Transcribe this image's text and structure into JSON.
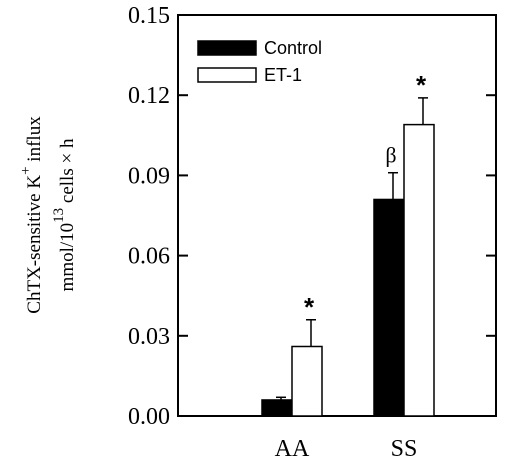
{
  "chart_data": {
    "type": "bar",
    "categories": [
      "AA",
      "SS"
    ],
    "series": [
      {
        "name": "Control",
        "color": "#000000",
        "values": [
          0.006,
          0.081
        ],
        "errors": [
          0.001,
          0.01
        ]
      },
      {
        "name": "ET-1",
        "color": "#ffffff",
        "values": [
          0.026,
          0.109
        ],
        "errors": [
          0.01,
          0.01
        ]
      }
    ],
    "yticks": [
      "0.00",
      "0.03",
      "0.06",
      "0.09",
      "0.12",
      "0.15"
    ],
    "ylim": [
      0,
      0.15
    ],
    "ylabel": {
      "line1_main": "ChTX-sensitive K",
      "line1_sup": "+",
      "line1_end": " influx",
      "line2_main": "mmol/10",
      "line2_sup": "13",
      "line2_end": " cells × h"
    },
    "legend": {
      "position": "top-left",
      "entries": [
        "Control",
        "ET-1"
      ]
    },
    "annotations": [
      {
        "text": "*",
        "category": 0,
        "series": 1
      },
      {
        "text": "β",
        "category": 1,
        "series": 0
      },
      {
        "text": "*",
        "category": 1,
        "series": 1
      }
    ]
  }
}
